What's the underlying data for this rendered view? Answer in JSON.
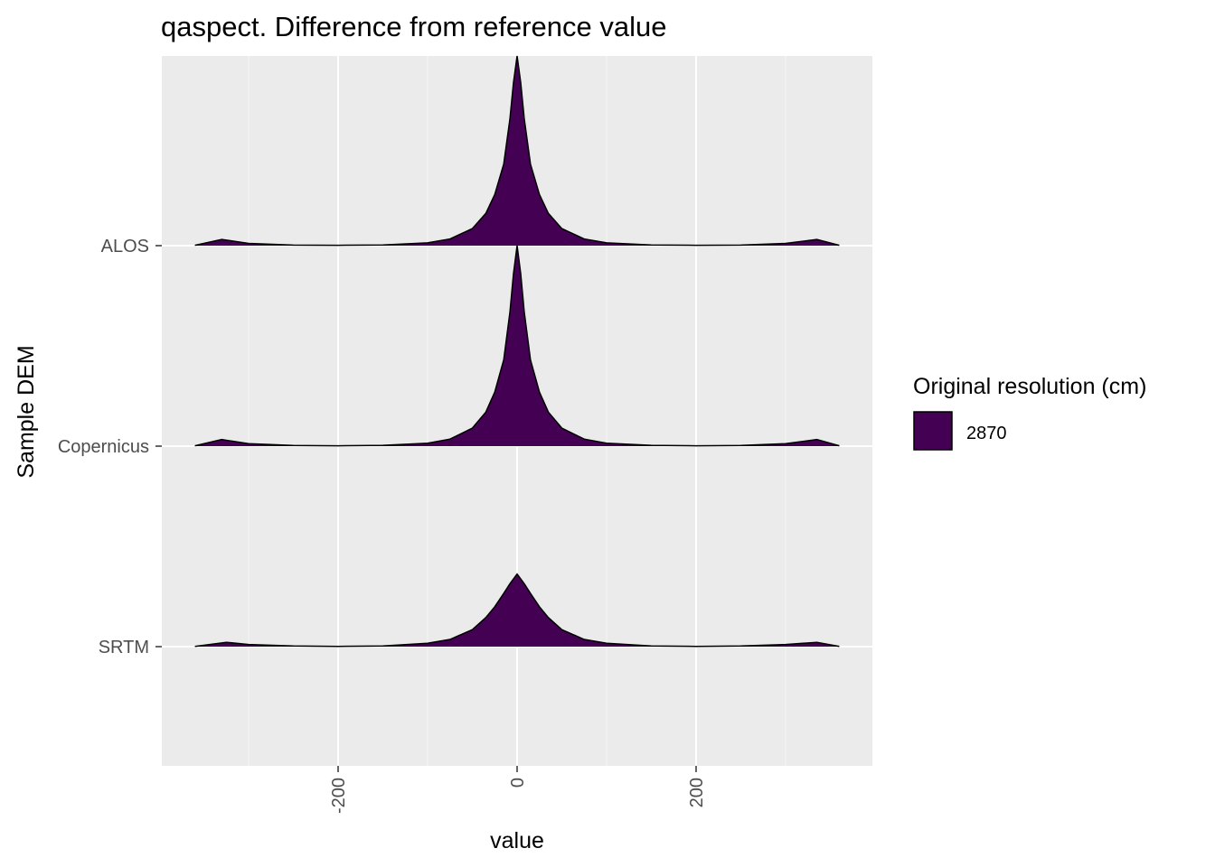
{
  "colors": {
    "panel_background": "#EBEBEB",
    "grid_major": "#FFFFFF",
    "grid_minor": "#F5F5F5",
    "fill": "#440154",
    "outline": "#000000",
    "tick_text": "#4D4D4D",
    "tick_mark": "#333333"
  },
  "chart_data": {
    "type": "ridgeline-density",
    "title": "qaspect. Difference from reference value",
    "xlabel": "value",
    "ylabel": "Sample DEM",
    "xlim": [
      -397,
      397
    ],
    "x_ticks": [
      -200,
      0,
      200
    ],
    "x_tick_labels": [
      "-200",
      "0",
      "200"
    ],
    "x_tick_label_rotation": "vertical",
    "categories": [
      "ALOS",
      "Copernicus",
      "SRTM"
    ],
    "grid": true,
    "legend": {
      "title": "Original resolution (cm)",
      "placement": "right",
      "entries": [
        {
          "label": "2870",
          "color": "#440154"
        }
      ]
    },
    "series": [
      {
        "category": "ALOS",
        "x": [
          -360,
          -330,
          -300,
          -250,
          -200,
          -150,
          -100,
          -75,
          -50,
          -35,
          -25,
          -15,
          -8,
          -4,
          0,
          4,
          8,
          15,
          25,
          35,
          50,
          75,
          100,
          150,
          200,
          250,
          300,
          335,
          360
        ],
        "density": [
          0.002,
          0.033,
          0.012,
          0.003,
          0.002,
          0.004,
          0.015,
          0.035,
          0.09,
          0.17,
          0.27,
          0.43,
          0.67,
          0.86,
          1.0,
          0.86,
          0.67,
          0.43,
          0.27,
          0.17,
          0.09,
          0.035,
          0.015,
          0.004,
          0.002,
          0.003,
          0.012,
          0.033,
          0.002
        ]
      },
      {
        "category": "Copernicus",
        "x": [
          -360,
          -330,
          -300,
          -250,
          -200,
          -150,
          -100,
          -75,
          -50,
          -35,
          -25,
          -15,
          -8,
          -4,
          0,
          4,
          8,
          15,
          25,
          35,
          50,
          75,
          100,
          150,
          200,
          250,
          300,
          335,
          360
        ],
        "density": [
          0.002,
          0.033,
          0.012,
          0.003,
          0.002,
          0.004,
          0.015,
          0.035,
          0.09,
          0.17,
          0.27,
          0.43,
          0.67,
          0.86,
          1.0,
          0.86,
          0.67,
          0.43,
          0.27,
          0.17,
          0.09,
          0.035,
          0.015,
          0.004,
          0.002,
          0.003,
          0.012,
          0.033,
          0.002
        ]
      },
      {
        "category": "SRTM",
        "x": [
          -360,
          -325,
          -300,
          -250,
          -200,
          -150,
          -100,
          -75,
          -50,
          -35,
          -25,
          -15,
          -8,
          0,
          8,
          15,
          25,
          35,
          50,
          75,
          100,
          150,
          200,
          250,
          300,
          335,
          360
        ],
        "density": [
          0.002,
          0.036,
          0.018,
          0.005,
          0.002,
          0.006,
          0.028,
          0.06,
          0.14,
          0.24,
          0.33,
          0.44,
          0.52,
          0.6,
          0.52,
          0.44,
          0.33,
          0.24,
          0.14,
          0.06,
          0.028,
          0.006,
          0.002,
          0.005,
          0.018,
          0.036,
          0.002
        ]
      }
    ]
  }
}
